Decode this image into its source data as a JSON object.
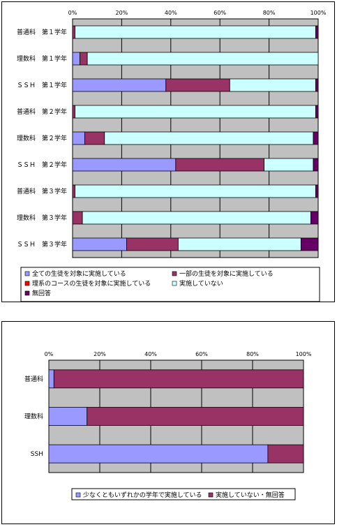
{
  "charts": [
    {
      "type": "bar",
      "orientation": "horizontal-stacked-100",
      "categories": [
        "普通科　第１学年",
        "理数科　第１学年",
        "ＳＳＨ　第１学年",
        "普通科　第２学年",
        "理数科　第２学年",
        "ＳＳＨ　第２学年",
        "普通科　第３学年",
        "理数科　第３学年",
        "ＳＳＨ　第３学年"
      ],
      "x_ticks": [
        "0%",
        "20%",
        "40%",
        "60%",
        "80%",
        "100%"
      ],
      "xlim": [
        0,
        100
      ],
      "series": [
        {
          "name": "全ての生徒を対象に実施している",
          "color": "#9999ff",
          "values": [
            0,
            3,
            38,
            0,
            5,
            42,
            0,
            0,
            22
          ]
        },
        {
          "name": "一部の生徒を対象に実施している",
          "color": "#993366",
          "values": [
            1,
            3,
            26,
            1,
            8,
            36,
            1,
            4,
            21
          ]
        },
        {
          "name": "理系のコースの生徒を対象に実施している",
          "color": "#ff0000",
          "values": [
            0,
            0,
            0,
            0,
            0,
            0,
            0,
            0,
            0
          ]
        },
        {
          "name": "実施していない",
          "color": "#ccffff",
          "values": [
            98,
            94,
            35,
            98,
            85,
            20,
            98,
            93,
            50
          ]
        },
        {
          "name": "無回答",
          "color": "#660066",
          "values": [
            1,
            0,
            1,
            1,
            2,
            2,
            1,
            3,
            7
          ]
        }
      ]
    },
    {
      "type": "bar",
      "orientation": "horizontal-stacked-100",
      "categories": [
        "普通科",
        "理数科",
        "SSH"
      ],
      "x_ticks": [
        "0%",
        "20%",
        "40%",
        "60%",
        "80%",
        "100%"
      ],
      "xlim": [
        0,
        100
      ],
      "series": [
        {
          "name": "少なくともいずれかの学年で実施している",
          "color": "#9999ff",
          "values": [
            2,
            15,
            86
          ]
        },
        {
          "name": "実施していない・無回答",
          "color": "#993366",
          "values": [
            98,
            85,
            14
          ]
        }
      ]
    }
  ],
  "colors": {
    "plot_background": "#c0c0c0",
    "grid": "#000000"
  }
}
